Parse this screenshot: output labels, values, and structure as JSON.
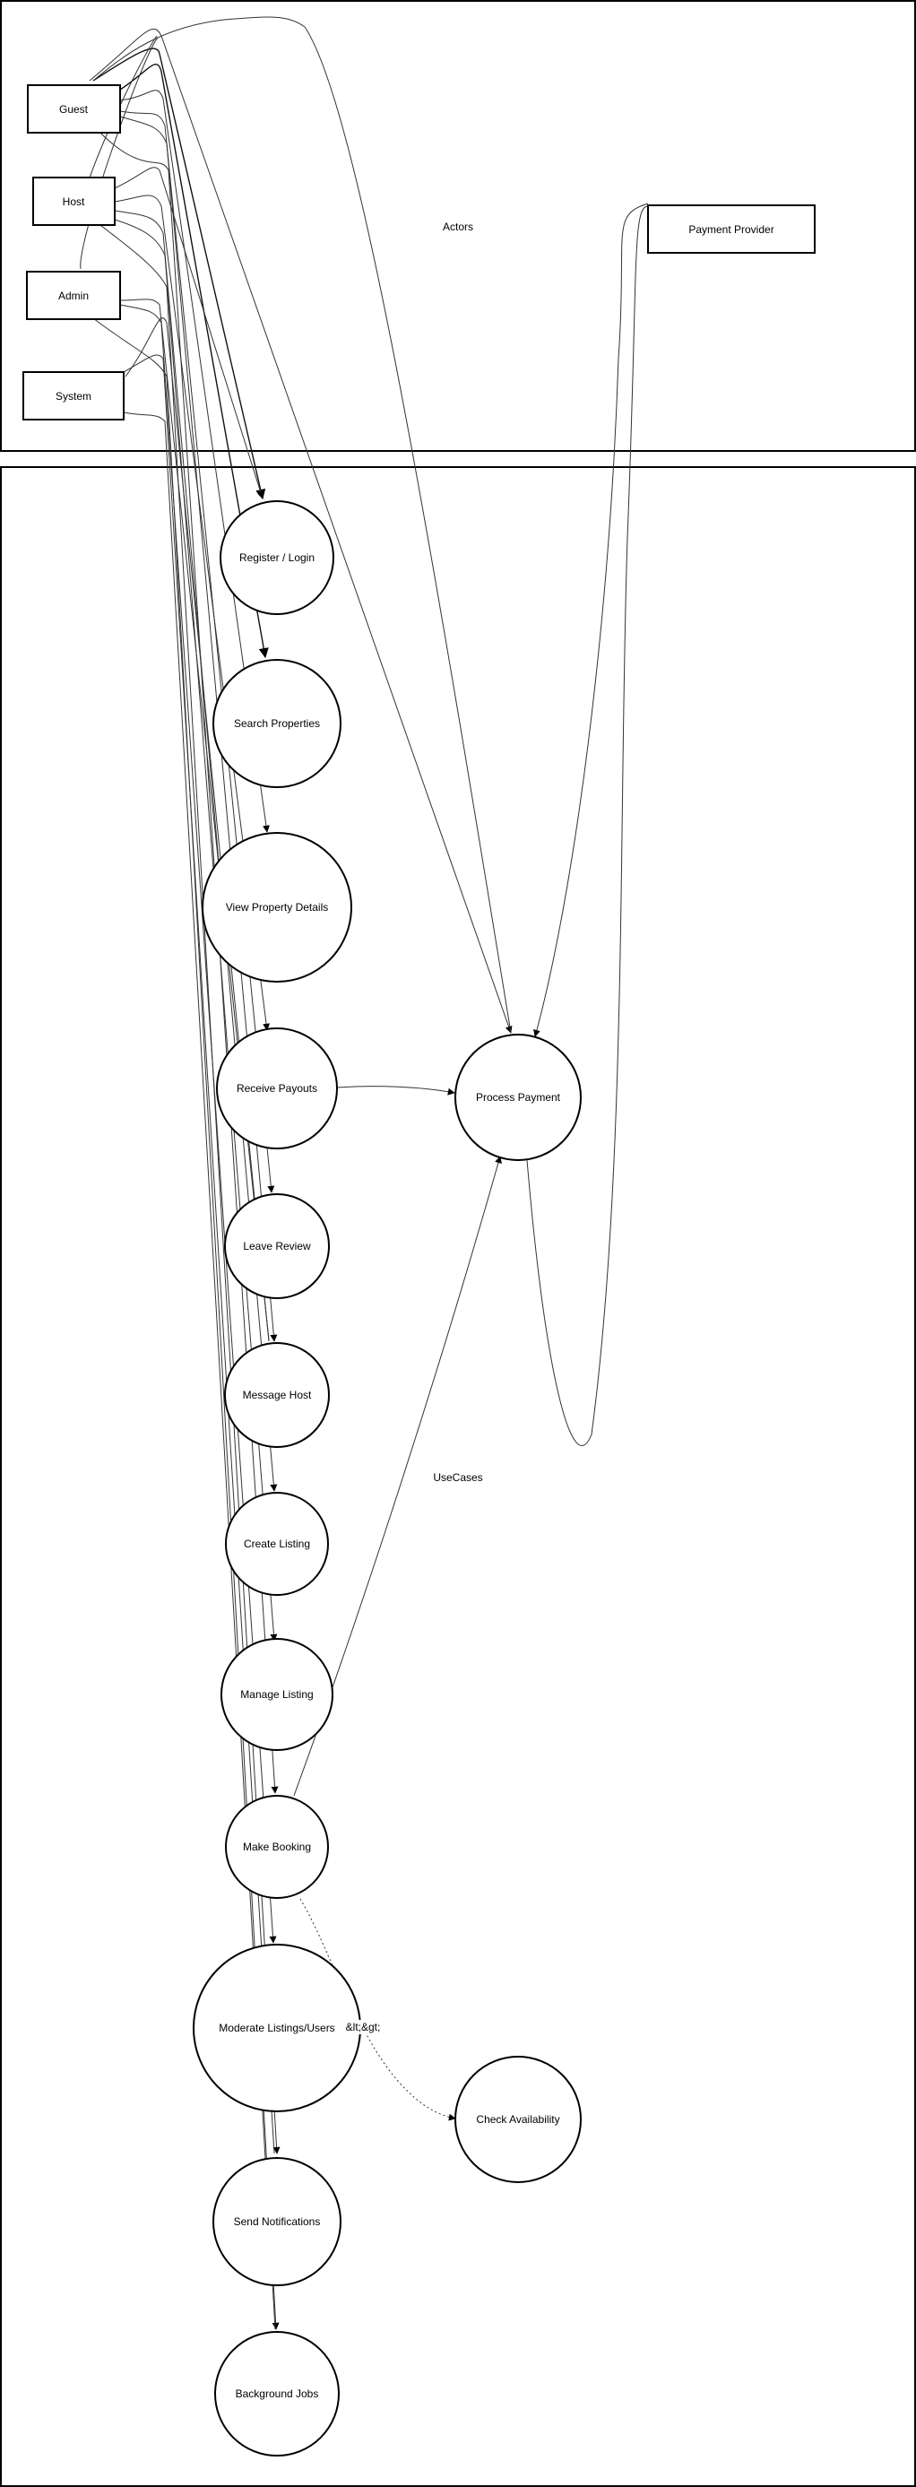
{
  "clusters": {
    "actors": {
      "label": "Actors"
    },
    "usecases": {
      "label": "UseCases"
    }
  },
  "actors": {
    "guest": "Guest",
    "host": "Host",
    "admin": "Admin",
    "system": "System",
    "payment_provider": "Payment Provider"
  },
  "usecases": {
    "register_login": "Register / Login",
    "search_properties": "Search Properties",
    "view_property_details": "View Property Details",
    "receive_payouts": "Receive Payouts",
    "leave_review": "Leave Review",
    "message_host": "Message Host",
    "create_listing": "Create Listing",
    "manage_listing": "Manage Listing",
    "make_booking": "Make Booking",
    "moderate": "Moderate Listings/Users",
    "send_notifications": "Send Notifications",
    "background_jobs": "Background Jobs",
    "process_payment": "Process Payment",
    "check_availability": "Check Availability"
  },
  "edge_labels": {
    "include": "&lt;&gt;"
  }
}
